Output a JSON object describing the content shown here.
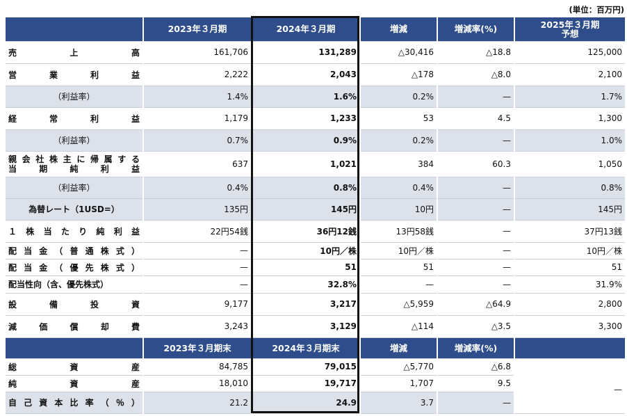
{
  "unit_note": "(単位：百万円)",
  "header1": [
    "2023年３月期",
    "2024年３月期",
    "増減",
    "増減率(%)",
    "2025年３月期\n予想"
  ],
  "rows1": [
    {
      "label": "売　上　高",
      "style": "jus",
      "shade": false,
      "v2023": "161,706",
      "v2024": "131,289",
      "diff": "△30,416",
      "rate": "△18.8",
      "f2025": "125,000"
    },
    {
      "label": "営　業　利　益",
      "style": "jus",
      "shade": false,
      "v2023": "2,222",
      "v2024": "2,043",
      "diff": "△178",
      "rate": "△8.0",
      "f2025": "2,100"
    },
    {
      "label": "（利益率）",
      "style": "cen",
      "shade": true,
      "v2023": "1.4%",
      "v2024": "1.6%",
      "diff": "0.2%",
      "rate": "—",
      "f2025": "1.7%"
    },
    {
      "label": "経　常　利　益",
      "style": "jus",
      "shade": false,
      "v2023": "1,179",
      "v2024": "1,233",
      "diff": "53",
      "rate": "4.5",
      "f2025": "1,300"
    },
    {
      "label": "（利益率）",
      "style": "cen",
      "shade": true,
      "v2023": "0.7%",
      "v2024": "0.9%",
      "diff": "0.2%",
      "rate": "—",
      "f2025": "1.0%"
    },
    {
      "label": "親会社株主に帰属する\n当　期　純　利　益",
      "style": "jus2",
      "shade": false,
      "v2023": "637",
      "v2024": "1,021",
      "diff": "384",
      "rate": "60.3",
      "f2025": "1,050"
    },
    {
      "label": "（利益率）",
      "style": "cen",
      "shade": true,
      "v2023": "0.4%",
      "v2024": "0.8%",
      "diff": "0.4%",
      "rate": "—",
      "f2025": "0.8%"
    },
    {
      "label": "為替レート（1USD=）",
      "style": "center-b",
      "shade": true,
      "v2023": "135円",
      "v2024": "145円",
      "diff": "10円",
      "rate": "—",
      "f2025": "145円"
    },
    {
      "label": "１株当たり純利益",
      "style": "jus",
      "shade": false,
      "v2023": "22円54銭",
      "v2024": "36円12銭",
      "diff": "13円58銭",
      "rate": "—",
      "f2025": "37円13銭"
    },
    {
      "label": "配当金（普通株式）",
      "style": "jus",
      "shade": false,
      "v2023": "—",
      "v2024": "10円／株",
      "diff": "10円／株",
      "rate": "—",
      "f2025": "10円／株"
    },
    {
      "label": "配当金（優先株式）",
      "style": "jus",
      "shade": false,
      "v2023": "—",
      "v2024": "51",
      "diff": "51",
      "rate": "—",
      "f2025": "51"
    },
    {
      "label": "配当性向（含、優先株式）",
      "style": "left",
      "shade": false,
      "v2023": "—",
      "v2024": "32.8%",
      "diff": "—",
      "rate": "—",
      "f2025": "31.9%"
    },
    {
      "label": "設　備　投　資",
      "style": "jus",
      "shade": false,
      "v2023": "9,177",
      "v2024": "3,217",
      "diff": "△5,959",
      "rate": "△64.9",
      "f2025": "2,800"
    },
    {
      "label": "減　価　償　却　費",
      "style": "jus",
      "shade": false,
      "v2023": "3,243",
      "v2024": "3,129",
      "diff": "△114",
      "rate": "△3.5",
      "f2025": "3,300"
    }
  ],
  "header2": [
    "2023年３月期末",
    "2024年３月期末",
    "増減",
    "増減率(%)"
  ],
  "rows2": [
    {
      "label": "総　資　産",
      "shade": false,
      "v2023": "84,785",
      "v2024": "79,015",
      "diff": "△5,770",
      "rate": "△6.8"
    },
    {
      "label": "純　資　産",
      "shade": false,
      "v2023": "18,010",
      "v2024": "19,717",
      "diff": "1,707",
      "rate": "9.5"
    },
    {
      "label": "自己資本比率（％）",
      "shade": true,
      "v2023": "21.2",
      "v2024": "24.9",
      "diff": "3.7",
      "rate": "—"
    }
  ],
  "f2025_balance": "—"
}
